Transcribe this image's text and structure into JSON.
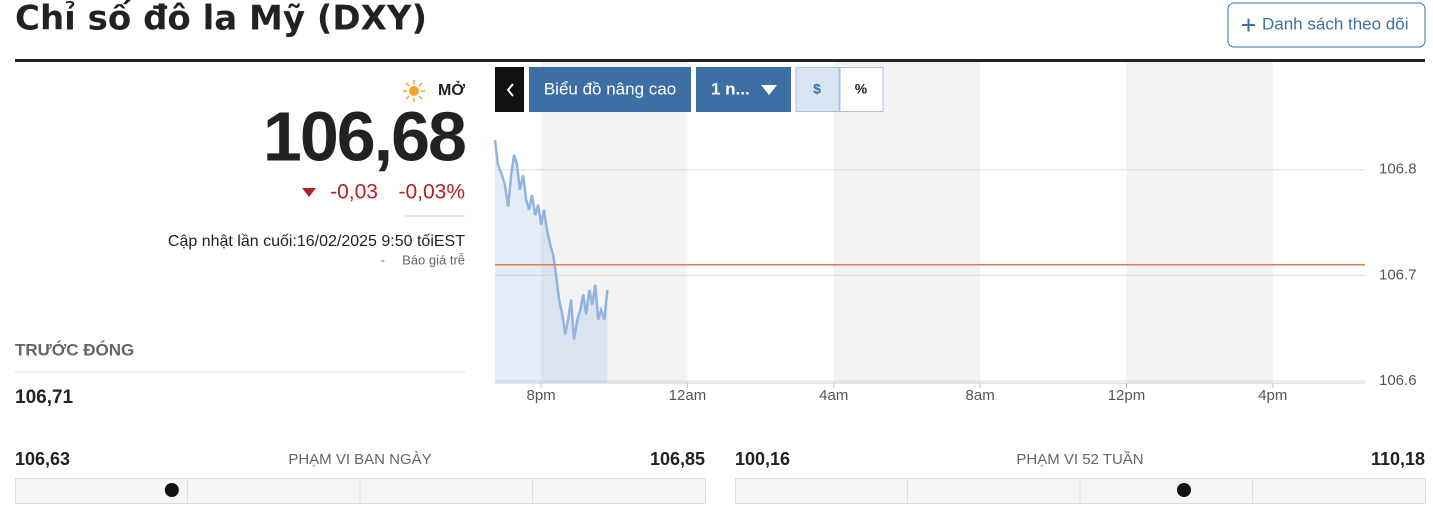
{
  "header": {
    "title": "Chỉ số đô la Mỹ (DXY)",
    "watchlist_button": "Danh sách theo dõi"
  },
  "quote": {
    "status": "MỞ",
    "price": {
      "value": 106.68,
      "label": "106,68"
    },
    "change": "-0,03",
    "change_percent": "-0,03%",
    "updated": "Cập nhật lần cuối:16/02/2025 9:50 tốiEST",
    "delay_prefix": "-",
    "delay": "Báo giá trễ"
  },
  "previous_close": {
    "label": "TRƯỚC ĐÓNG",
    "value": {
      "value": 106.71,
      "label": "106,71"
    }
  },
  "toolbar": {
    "advanced_chart": "Biểu đồ nâng cao",
    "period": "1 n...",
    "currency": "$",
    "percent": "%"
  },
  "chart_data": {
    "type": "line",
    "x": [
      18.74,
      18.82,
      18.93,
      19.01,
      19.1,
      19.18,
      19.26,
      19.34,
      19.42,
      19.51,
      19.59,
      19.67,
      19.75,
      19.84,
      19.92,
      20.0,
      20.08,
      20.16,
      20.25,
      20.33,
      20.41,
      20.49,
      20.58,
      20.66,
      20.74,
      20.82,
      20.9,
      20.99,
      21.07,
      21.15,
      21.23,
      21.32,
      21.4,
      21.48,
      21.56,
      21.64,
      21.73,
      21.81
    ],
    "series": [
      {
        "color": "#8fb4e0",
        "values": [
          106.828,
          106.805,
          106.795,
          106.786,
          106.765,
          106.795,
          106.814,
          106.805,
          106.781,
          106.795,
          106.772,
          106.762,
          106.776,
          106.757,
          106.767,
          106.748,
          106.762,
          106.743,
          106.729,
          106.719,
          106.7,
          106.677,
          106.663,
          106.644,
          106.658,
          106.677,
          106.639,
          106.658,
          106.667,
          106.682,
          106.663,
          106.686,
          106.672,
          106.691,
          106.658,
          106.667,
          106.658,
          106.686
        ]
      }
    ],
    "xlim": [
      18.74,
      42.52
    ],
    "xticks": [
      {
        "value": 20,
        "label": "8pm"
      },
      {
        "value": 24,
        "label": "12am"
      },
      {
        "value": 28,
        "label": "4am"
      },
      {
        "value": 32,
        "label": "8am"
      },
      {
        "value": 36,
        "label": "12pm"
      },
      {
        "value": 40,
        "label": "4pm"
      }
    ],
    "ylim": [
      106.598,
      106.902
    ],
    "yticks": [
      106.6,
      106.7,
      106.8
    ],
    "grid": true,
    "reference_line_color": "#d9804a"
  },
  "ranges": [
    {
      "label": "PHẠM VI BAN NGÀY",
      "low": {
        "value": 106.63,
        "label": "106,63"
      },
      "high": {
        "value": 106.85,
        "label": "106,85"
      }
    },
    {
      "label": "PHẠM VI 52 TUẦN",
      "low": {
        "value": 100.16,
        "label": "100,16"
      },
      "high": {
        "value": 110.18,
        "label": "110,18"
      }
    }
  ]
}
